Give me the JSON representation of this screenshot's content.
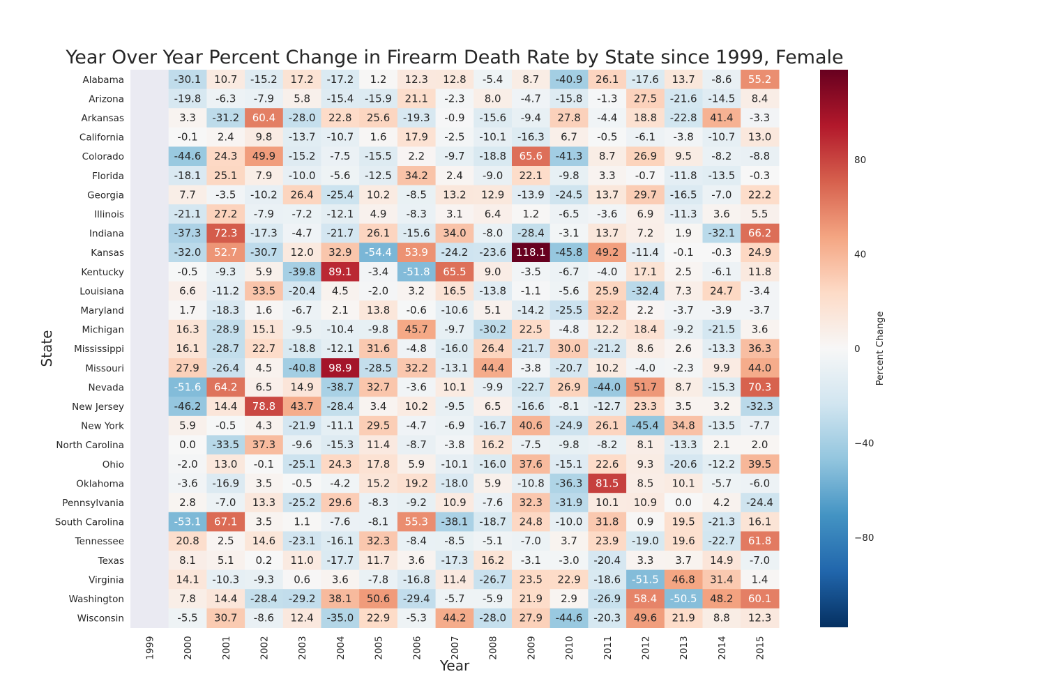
{
  "chart_data": {
    "type": "heatmap",
    "title": "Year Over Year Percent Change in Firearm Death Rate by State since 1999, Female",
    "xlabel": "Year",
    "ylabel": "State",
    "colorbar_label": "Percent Change",
    "colorbar_ticks": [
      80,
      40,
      0,
      -40,
      -80
    ],
    "colorbar_tick_labels": [
      "80",
      "40",
      "0",
      "−40",
      "−80"
    ],
    "vmin": -118.1,
    "vmax": 118.1,
    "colormap": "RdBu_r",
    "missing_color": "#EAEAF2",
    "columns": [
      "1999",
      "2000",
      "2001",
      "2002",
      "2003",
      "2004",
      "2005",
      "2006",
      "2007",
      "2008",
      "2009",
      "2010",
      "2011",
      "2012",
      "2013",
      "2014",
      "2015"
    ],
    "rows": [
      "Alabama",
      "Arizona",
      "Arkansas",
      "California",
      "Colorado",
      "Florida",
      "Georgia",
      "Illinois",
      "Indiana",
      "Kansas",
      "Kentucky",
      "Louisiana",
      "Maryland",
      "Michigan",
      "Mississippi",
      "Missouri",
      "Nevada",
      "New Jersey",
      "New York",
      "North Carolina",
      "Ohio",
      "Oklahoma",
      "Pennsylvania",
      "South Carolina",
      "Tennessee",
      "Texas",
      "Virginia",
      "Washington",
      "Wisconsin"
    ],
    "values": [
      [
        null,
        -30.1,
        10.7,
        -15.2,
        17.2,
        -17.2,
        1.2,
        12.3,
        12.8,
        -5.4,
        8.7,
        -40.9,
        26.1,
        -17.6,
        13.7,
        -8.6,
        55.2
      ],
      [
        null,
        -19.8,
        -6.3,
        -7.9,
        5.8,
        -15.4,
        -15.9,
        21.1,
        -2.3,
        8.0,
        -4.7,
        -15.8,
        -1.3,
        27.5,
        -21.6,
        -14.5,
        8.4
      ],
      [
        null,
        3.3,
        -31.2,
        60.4,
        -28.0,
        22.8,
        25.6,
        -19.3,
        -0.9,
        -15.6,
        -9.4,
        27.8,
        -4.4,
        18.8,
        -22.8,
        41.4,
        -3.3
      ],
      [
        null,
        -0.1,
        2.4,
        9.8,
        -13.7,
        -10.7,
        1.6,
        17.9,
        -2.5,
        -10.1,
        -16.3,
        6.7,
        -0.5,
        -6.1,
        -3.8,
        -10.7,
        13.0
      ],
      [
        null,
        -44.6,
        24.3,
        49.9,
        -15.2,
        -7.5,
        -15.5,
        2.2,
        -9.7,
        -18.8,
        65.6,
        -41.3,
        8.7,
        26.9,
        9.5,
        -8.2,
        -8.8
      ],
      [
        null,
        -18.1,
        25.1,
        7.9,
        -10.0,
        -5.6,
        -12.5,
        34.2,
        2.4,
        -9.0,
        22.1,
        -9.8,
        3.3,
        -0.7,
        -11.8,
        -13.5,
        -0.3
      ],
      [
        null,
        7.7,
        -3.5,
        -10.2,
        26.4,
        -25.4,
        10.2,
        -8.5,
        13.2,
        12.9,
        -13.9,
        -24.5,
        13.7,
        29.7,
        -16.5,
        -7.0,
        22.2
      ],
      [
        null,
        -21.1,
        27.2,
        -7.9,
        -7.2,
        -12.1,
        4.9,
        -8.3,
        3.1,
        6.4,
        1.2,
        -6.5,
        -3.6,
        6.9,
        -11.3,
        3.6,
        5.5
      ],
      [
        null,
        -37.3,
        72.3,
        -17.3,
        -4.7,
        -21.7,
        26.1,
        -15.6,
        34.0,
        -8.0,
        -28.4,
        -3.1,
        13.7,
        7.2,
        1.9,
        -32.1,
        66.2
      ],
      [
        null,
        -32.0,
        52.7,
        -30.7,
        12.0,
        32.9,
        -54.4,
        53.9,
        -24.2,
        -23.6,
        118.1,
        -45.8,
        49.2,
        -11.4,
        -0.1,
        -0.3,
        24.9
      ],
      [
        null,
        -0.5,
        -9.3,
        5.9,
        -39.8,
        89.1,
        -3.4,
        -51.8,
        65.5,
        9.0,
        -3.5,
        -6.7,
        -4.0,
        17.1,
        2.5,
        -6.1,
        11.8
      ],
      [
        null,
        6.6,
        -11.2,
        33.5,
        -20.4,
        4.5,
        -2.0,
        3.2,
        16.5,
        -13.8,
        -1.1,
        -5.6,
        25.9,
        -32.4,
        7.3,
        24.7,
        -3.4
      ],
      [
        null,
        1.7,
        -18.3,
        1.6,
        -6.7,
        2.1,
        13.8,
        -0.6,
        -10.6,
        5.1,
        -14.2,
        -25.5,
        32.2,
        2.2,
        -3.7,
        -3.9,
        -3.7
      ],
      [
        null,
        16.3,
        -28.9,
        15.1,
        -9.5,
        -10.4,
        -9.8,
        45.7,
        -9.7,
        -30.2,
        22.5,
        -4.8,
        12.2,
        18.4,
        -9.2,
        -21.5,
        3.6
      ],
      [
        null,
        16.1,
        -28.7,
        22.7,
        -18.8,
        -12.1,
        31.6,
        -4.8,
        -16.0,
        26.4,
        -21.7,
        30.0,
        -21.2,
        8.6,
        2.6,
        -13.3,
        36.3
      ],
      [
        null,
        27.9,
        -26.4,
        4.5,
        -40.8,
        98.9,
        -28.5,
        32.2,
        -13.1,
        44.4,
        -3.8,
        -20.7,
        10.2,
        -4.0,
        -2.3,
        9.9,
        44.0
      ],
      [
        null,
        -51.6,
        64.2,
        6.5,
        14.9,
        -38.7,
        32.7,
        -3.6,
        10.1,
        -9.9,
        -22.7,
        26.9,
        -44.0,
        51.7,
        8.7,
        -15.3,
        70.3
      ],
      [
        null,
        -46.2,
        14.4,
        78.8,
        43.7,
        -28.4,
        3.4,
        10.2,
        -9.5,
        6.5,
        -16.6,
        -8.1,
        -12.7,
        23.3,
        3.5,
        3.2,
        -32.3
      ],
      [
        null,
        5.9,
        -0.5,
        4.3,
        -21.9,
        -11.1,
        29.5,
        -4.7,
        -6.9,
        -16.7,
        40.6,
        -24.9,
        26.1,
        -45.4,
        34.8,
        -13.5,
        -7.7
      ],
      [
        null,
        0.0,
        -33.5,
        37.3,
        -9.6,
        -15.3,
        11.4,
        -8.7,
        -3.8,
        16.2,
        -7.5,
        -9.8,
        -8.2,
        8.1,
        -13.3,
        2.1,
        2.0
      ],
      [
        null,
        -2.0,
        13.0,
        -0.1,
        -25.1,
        24.3,
        17.8,
        5.9,
        -10.1,
        -16.0,
        37.6,
        -15.1,
        22.6,
        9.3,
        -20.6,
        -12.2,
        39.5
      ],
      [
        null,
        -3.6,
        -16.9,
        3.5,
        -0.5,
        -4.2,
        15.2,
        19.2,
        -18.0,
        5.9,
        -10.8,
        -36.3,
        81.5,
        8.5,
        10.1,
        -5.7,
        -6.0
      ],
      [
        null,
        2.8,
        -7.0,
        13.3,
        -25.2,
        29.6,
        -8.3,
        -9.2,
        10.9,
        -7.6,
        32.3,
        -31.9,
        10.1,
        10.9,
        0.0,
        4.2,
        -24.4
      ],
      [
        null,
        -53.1,
        67.1,
        3.5,
        1.1,
        -7.6,
        -8.1,
        55.3,
        -38.1,
        -18.7,
        24.8,
        -10.0,
        31.8,
        0.9,
        19.5,
        -21.3,
        16.1
      ],
      [
        null,
        20.8,
        2.5,
        14.6,
        -23.1,
        -16.1,
        32.3,
        -8.4,
        -8.5,
        -5.1,
        -7.0,
        3.7,
        23.9,
        -19.0,
        19.6,
        -22.7,
        61.8
      ],
      [
        null,
        8.1,
        5.1,
        0.2,
        11.0,
        -17.7,
        11.7,
        3.6,
        -17.3,
        16.2,
        -3.1,
        -3.0,
        -20.4,
        3.3,
        3.7,
        14.9,
        -7.0
      ],
      [
        null,
        14.1,
        -10.3,
        -9.3,
        0.6,
        3.6,
        -7.8,
        -16.8,
        11.4,
        -26.7,
        23.5,
        22.9,
        -18.6,
        -51.5,
        46.8,
        31.4,
        1.4
      ],
      [
        null,
        7.8,
        14.4,
        -28.4,
        -29.2,
        38.1,
        50.6,
        -29.4,
        -5.7,
        -5.9,
        21.9,
        2.9,
        -26.9,
        58.4,
        -50.5,
        48.2,
        60.1
      ],
      [
        null,
        -5.5,
        30.7,
        -8.6,
        12.4,
        -35.0,
        22.9,
        -5.3,
        44.2,
        -28.0,
        27.9,
        -44.6,
        -20.3,
        49.6,
        21.9,
        8.8,
        12.3
      ]
    ]
  }
}
